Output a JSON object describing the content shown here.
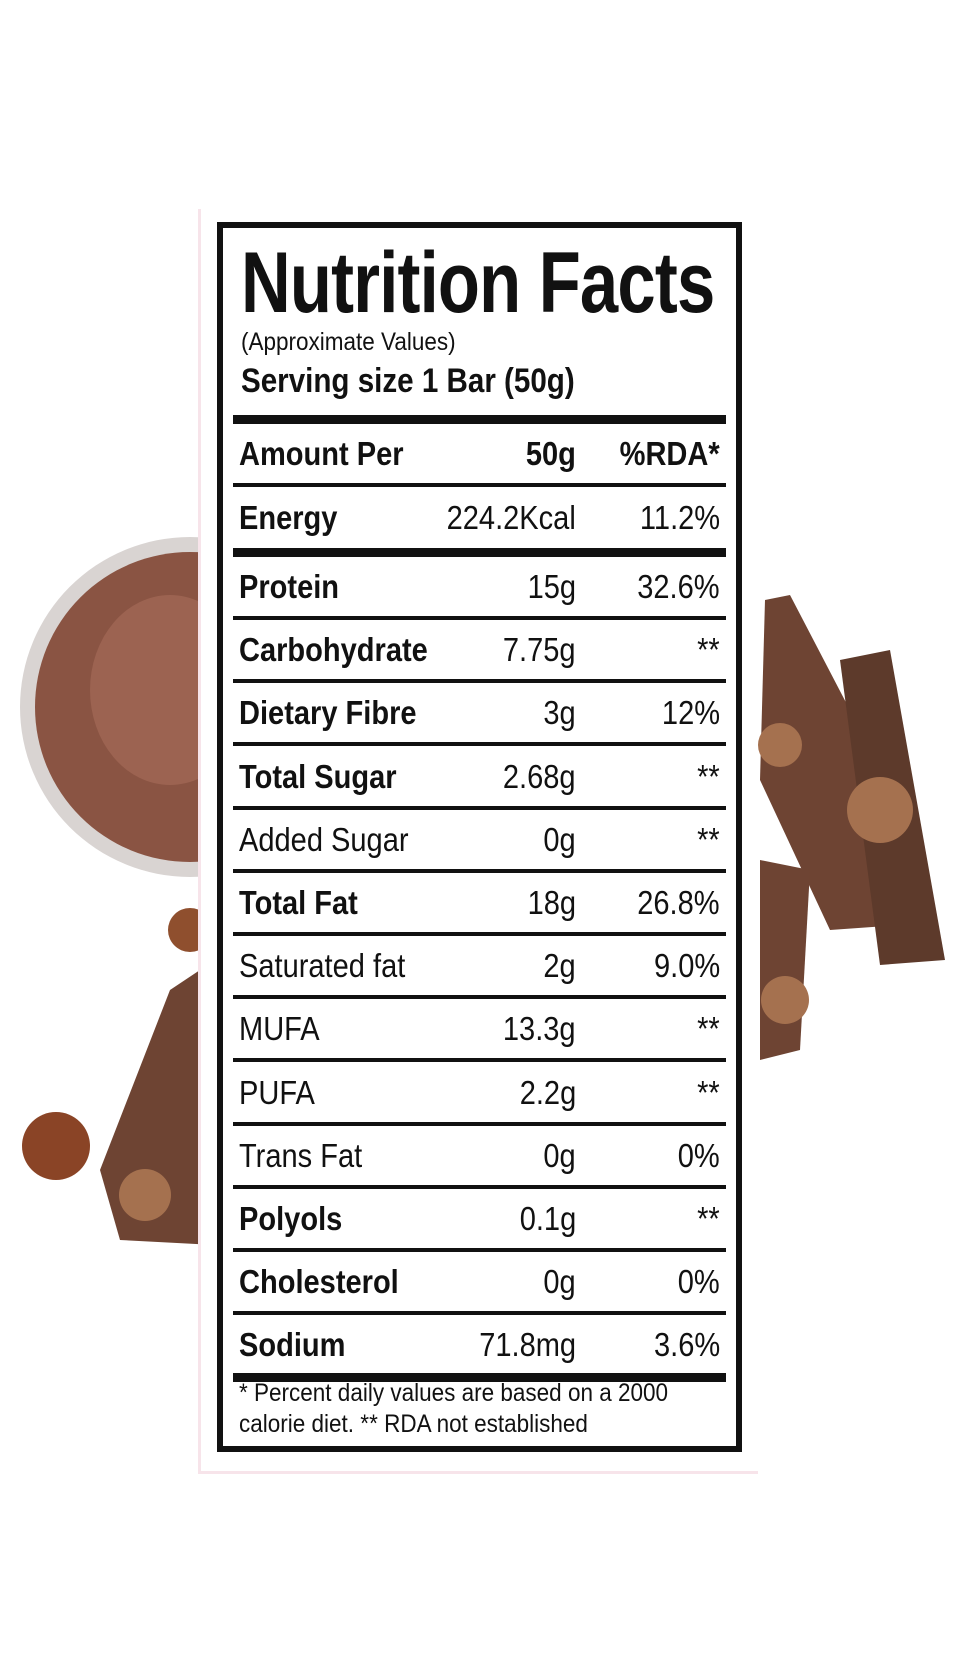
{
  "header": {
    "title": "Nutrition Facts",
    "subtitle": "(Approximate Values)",
    "serving": "Serving size 1 Bar (50g)"
  },
  "table": {
    "columns": [
      "Amount Per",
      "50g",
      "%RDA*"
    ],
    "rows": [
      {
        "name": "Energy",
        "amount": "224.2Kcal",
        "rda": "11.2%",
        "bold": true
      },
      {
        "name": "Protein",
        "amount": "15g",
        "rda": "32.6%",
        "bold": true
      },
      {
        "name": "Carbohydrate",
        "amount": "7.75g",
        "rda": "**",
        "bold": true
      },
      {
        "name": "Dietary Fibre",
        "amount": "3g",
        "rda": "12%",
        "bold": true
      },
      {
        "name": "Total Sugar",
        "amount": "2.68g",
        "rda": "**",
        "bold": true
      },
      {
        "name": "Added Sugar",
        "amount": "0g",
        "rda": "**",
        "bold": false
      },
      {
        "name": "Total Fat",
        "amount": "18g",
        "rda": "26.8%",
        "bold": true
      },
      {
        "name": "Saturated fat",
        "amount": "2g",
        "rda": "9.0%",
        "bold": false
      },
      {
        "name": "MUFA",
        "amount": "13.3g",
        "rda": "**",
        "bold": false
      },
      {
        "name": "PUFA",
        "amount": "2.2g",
        "rda": "**",
        "bold": false
      },
      {
        "name": "Trans Fat",
        "amount": "0g",
        "rda": "0%",
        "bold": false
      },
      {
        "name": "Polyols",
        "amount": "0.1g",
        "rda": "**",
        "bold": true
      },
      {
        "name": "Cholesterol",
        "amount": "0g",
        "rda": "0%",
        "bold": true
      },
      {
        "name": "Sodium",
        "amount": "71.8mg",
        "rda": "3.6%",
        "bold": true
      }
    ]
  },
  "footnote": "* Percent daily values are based on a 2000 calorie diet. ** RDA not established"
}
